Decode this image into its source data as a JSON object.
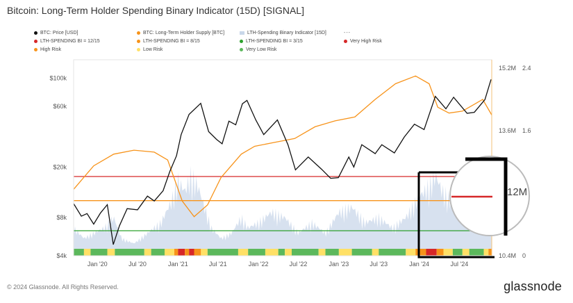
{
  "title": "Bitcoin: Long-Term Holder Spending Binary Indicator (15D) [SIGNAL]",
  "legend": [
    {
      "label": "BTC: Price [USD]",
      "color": "#111111",
      "shape": "dot"
    },
    {
      "label": "BTC: Long-Term Holder Supply [BTC]",
      "color": "#f7931a",
      "shape": "dot"
    },
    {
      "label": "LTH-Spending Binary Indicator [15D]",
      "color": "#c9d7ea",
      "shape": "square"
    },
    {
      "label": "---",
      "color": "#666666",
      "shape": "none"
    },
    {
      "label": "LTH-SPENDING BI = 12/15",
      "color": "#d62728",
      "shape": "dot"
    },
    {
      "label": "LTH-SPENDING BI = 8/15",
      "color": "#f7931a",
      "shape": "dot"
    },
    {
      "label": "LTH-SPENDING BI = 3/15",
      "color": "#2ca02c",
      "shape": "dot"
    },
    {
      "label": "Very High Risk",
      "color": "#d62728",
      "shape": "dot"
    },
    {
      "label": "High Risk",
      "color": "#f7931a",
      "shape": "dot"
    },
    {
      "label": "Low Risk",
      "color": "#ffe066",
      "shape": "dot"
    },
    {
      "label": "Very Low Risk",
      "color": "#5cb85c",
      "shape": "dot"
    }
  ],
  "footer": {
    "copyright": "© 2024 Glassnode. All Rights Reserved.",
    "brand": "glassnode"
  },
  "zoom_label": "12M",
  "chart_data": {
    "type": "line",
    "x_ticks": [
      "Jan '20",
      "Jul '20",
      "Jan '21",
      "Jul '21",
      "Jan '22",
      "Jul '22",
      "Jan '23",
      "Jul '23",
      "Jan '24",
      "Jul '24"
    ],
    "y_left": {
      "scale": "log",
      "ticks": [
        "$4k",
        "$8k",
        "$20k",
        "$60k",
        "$100k"
      ],
      "tick_values": [
        4000,
        8000,
        20000,
        60000,
        100000
      ],
      "range": [
        4000,
        140000
      ]
    },
    "y_mid": {
      "ticks": [
        "15.2M",
        "13.6M",
        "10.4M"
      ],
      "tick_values": [
        15200000,
        13600000,
        10400000
      ]
    },
    "y_right": {
      "ticks": [
        "2.4",
        "1.6",
        "0"
      ],
      "tick_values": [
        2.4,
        1.6,
        0
      ]
    },
    "x_range": [
      "2019-09-15",
      "2024-11-25"
    ],
    "thresholds": [
      {
        "label": "LTH-SPENDING BI = 12/15",
        "value": 12,
        "color": "#d62728"
      },
      {
        "label": "LTH-SPENDING BI = 8/15",
        "value": 8,
        "color": "#f7931a"
      },
      {
        "label": "LTH-SPENDING BI = 3/15",
        "value": 3,
        "color": "#2ca02c"
      }
    ],
    "indicator_max": 15,
    "series": [
      {
        "name": "BTC: Price [USD]",
        "color": "#111111",
        "points": [
          [
            "2019-09-15",
            10300
          ],
          [
            "2019-10-20",
            8200
          ],
          [
            "2019-11-15",
            8600
          ],
          [
            "2019-12-15",
            7100
          ],
          [
            "2020-01-15",
            8700
          ],
          [
            "2020-02-15",
            10100
          ],
          [
            "2020-03-13",
            4900
          ],
          [
            "2020-04-10",
            6900
          ],
          [
            "2020-05-15",
            9400
          ],
          [
            "2020-07-01",
            9200
          ],
          [
            "2020-08-15",
            11800
          ],
          [
            "2020-09-15",
            10800
          ],
          [
            "2020-10-25",
            13000
          ],
          [
            "2020-11-25",
            18500
          ],
          [
            "2020-12-25",
            24500
          ],
          [
            "2021-01-15",
            36000
          ],
          [
            "2021-02-20",
            52000
          ],
          [
            "2021-04-14",
            63500
          ],
          [
            "2021-05-20",
            38000
          ],
          [
            "2021-06-25",
            33000
          ],
          [
            "2021-07-20",
            30500
          ],
          [
            "2021-08-20",
            46000
          ],
          [
            "2021-09-20",
            43000
          ],
          [
            "2021-10-20",
            63000
          ],
          [
            "2021-11-10",
            67000
          ],
          [
            "2021-12-20",
            47000
          ],
          [
            "2022-01-25",
            36000
          ],
          [
            "2022-03-28",
            47000
          ],
          [
            "2022-05-15",
            30000
          ],
          [
            "2022-06-18",
            19000
          ],
          [
            "2022-08-15",
            24000
          ],
          [
            "2022-10-15",
            19200
          ],
          [
            "2022-11-25",
            16300
          ],
          [
            "2022-12-30",
            16500
          ],
          [
            "2023-02-15",
            24000
          ],
          [
            "2023-03-10",
            20000
          ],
          [
            "2023-04-15",
            30000
          ],
          [
            "2023-06-15",
            25500
          ],
          [
            "2023-07-15",
            30000
          ],
          [
            "2023-09-10",
            25800
          ],
          [
            "2023-10-25",
            34500
          ],
          [
            "2023-12-10",
            43500
          ],
          [
            "2024-01-23",
            39500
          ],
          [
            "2024-03-14",
            72000
          ],
          [
            "2024-05-01",
            57500
          ],
          [
            "2024-06-05",
            71000
          ],
          [
            "2024-08-05",
            53000
          ],
          [
            "2024-09-07",
            54000
          ],
          [
            "2024-10-25",
            68000
          ],
          [
            "2024-11-22",
            98000
          ]
        ]
      },
      {
        "name": "BTC: Long-Term Holder Supply [BTC]",
        "color": "#f7931a",
        "points": [
          [
            "2019-09-15",
            12100000
          ],
          [
            "2019-12-15",
            12700000
          ],
          [
            "2020-03-15",
            13000000
          ],
          [
            "2020-06-15",
            13100000
          ],
          [
            "2020-09-15",
            13050000
          ],
          [
            "2020-11-15",
            12850000
          ],
          [
            "2021-01-20",
            11800000
          ],
          [
            "2021-03-15",
            11400000
          ],
          [
            "2021-05-15",
            11700000
          ],
          [
            "2021-07-15",
            12400000
          ],
          [
            "2021-10-15",
            13000000
          ],
          [
            "2021-12-15",
            13200000
          ],
          [
            "2022-03-15",
            13300000
          ],
          [
            "2022-06-15",
            13400000
          ],
          [
            "2022-09-15",
            13700000
          ],
          [
            "2022-12-15",
            13850000
          ],
          [
            "2023-03-15",
            13950000
          ],
          [
            "2023-06-15",
            14400000
          ],
          [
            "2023-09-15",
            14800000
          ],
          [
            "2023-12-15",
            15000000
          ],
          [
            "2024-02-15",
            14800000
          ],
          [
            "2024-03-25",
            14200000
          ],
          [
            "2024-05-15",
            14050000
          ],
          [
            "2024-07-15",
            14100000
          ],
          [
            "2024-09-15",
            14300000
          ],
          [
            "2024-10-15",
            14400000
          ],
          [
            "2024-11-25",
            14000000
          ]
        ]
      },
      {
        "name": "LTH-Spending Binary Indicator [15D]",
        "color": "#c9d7ea",
        "points": [
          [
            "2019-09-15",
            4
          ],
          [
            "2019-11-01",
            2
          ],
          [
            "2019-12-15",
            3
          ],
          [
            "2020-02-01",
            4
          ],
          [
            "2020-03-15",
            6
          ],
          [
            "2020-04-20",
            2
          ],
          [
            "2020-06-15",
            1
          ],
          [
            "2020-08-15",
            3
          ],
          [
            "2020-10-15",
            5
          ],
          [
            "2020-12-01",
            9
          ],
          [
            "2021-01-01",
            13
          ],
          [
            "2021-02-01",
            11
          ],
          [
            "2021-03-01",
            14
          ],
          [
            "2021-04-01",
            12
          ],
          [
            "2021-05-01",
            8
          ],
          [
            "2021-06-01",
            4
          ],
          [
            "2021-07-15",
            2
          ],
          [
            "2021-09-01",
            3
          ],
          [
            "2021-10-15",
            6
          ],
          [
            "2021-11-15",
            4
          ],
          [
            "2022-01-01",
            5
          ],
          [
            "2022-03-01",
            7
          ],
          [
            "2022-05-01",
            6
          ],
          [
            "2022-07-01",
            3
          ],
          [
            "2022-09-01",
            5
          ],
          [
            "2022-11-01",
            3
          ],
          [
            "2023-01-01",
            7
          ],
          [
            "2023-03-01",
            8
          ],
          [
            "2023-05-01",
            5
          ],
          [
            "2023-07-01",
            6
          ],
          [
            "2023-09-01",
            4
          ],
          [
            "2023-11-01",
            6
          ],
          [
            "2024-01-01",
            10
          ],
          [
            "2024-02-15",
            12
          ],
          [
            "2024-03-15",
            14
          ],
          [
            "2024-04-15",
            11
          ],
          [
            "2024-06-01",
            9
          ],
          [
            "2024-07-15",
            7
          ],
          [
            "2024-09-01",
            5
          ],
          [
            "2024-10-15",
            6
          ],
          [
            "2024-11-25",
            8
          ]
        ]
      }
    ],
    "risk_bands": [
      [
        "2019-09-15",
        "green"
      ],
      [
        "2019-11-01",
        "yellow"
      ],
      [
        "2019-12-01",
        "green"
      ],
      [
        "2020-02-15",
        "yellow"
      ],
      [
        "2020-03-20",
        "green"
      ],
      [
        "2020-08-01",
        "yellow"
      ],
      [
        "2020-09-01",
        "green"
      ],
      [
        "2020-11-01",
        "yellow"
      ],
      [
        "2020-12-15",
        "orange"
      ],
      [
        "2021-01-01",
        "red"
      ],
      [
        "2021-02-01",
        "orange"
      ],
      [
        "2021-02-20",
        "red"
      ],
      [
        "2021-03-15",
        "orange"
      ],
      [
        "2021-04-15",
        "yellow"
      ],
      [
        "2021-05-15",
        "green"
      ],
      [
        "2021-10-01",
        "yellow"
      ],
      [
        "2021-11-15",
        "green"
      ],
      [
        "2022-02-01",
        "yellow"
      ],
      [
        "2022-04-01",
        "green"
      ],
      [
        "2022-05-01",
        "yellow"
      ],
      [
        "2022-06-01",
        "green"
      ],
      [
        "2022-10-01",
        "yellow"
      ],
      [
        "2022-11-01",
        "green"
      ],
      [
        "2023-01-01",
        "yellow"
      ],
      [
        "2023-03-01",
        "green"
      ],
      [
        "2023-06-01",
        "yellow"
      ],
      [
        "2023-07-01",
        "green"
      ],
      [
        "2023-11-01",
        "yellow"
      ],
      [
        "2023-12-15",
        "orange"
      ],
      [
        "2024-02-01",
        "red"
      ],
      [
        "2024-03-20",
        "orange"
      ],
      [
        "2024-04-20",
        "yellow"
      ],
      [
        "2024-06-01",
        "green"
      ],
      [
        "2024-07-15",
        "yellow"
      ],
      [
        "2024-08-15",
        "green"
      ],
      [
        "2024-10-20",
        "yellow"
      ],
      [
        "2024-11-10",
        "orange"
      ]
    ],
    "band_colors": {
      "green": "#5cb85c",
      "yellow": "#ffe066",
      "orange": "#f7931a",
      "red": "#d62728"
    }
  }
}
